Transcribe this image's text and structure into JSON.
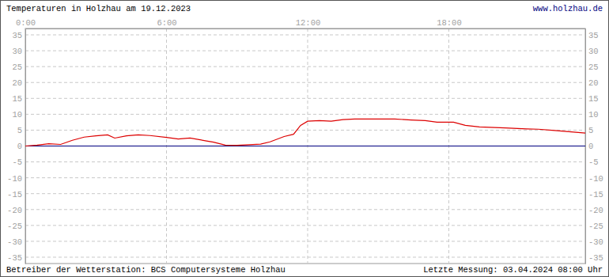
{
  "chart_data": {
    "type": "line",
    "title": "Temperaturen in Holzhau am 19.12.2023",
    "annotations": [
      "www.holzhau.de",
      "Betreiber der Wetterstation: BCS Computersysteme Holzhau",
      "Letzte Messung: 03.04.2024 08:00 Uhr"
    ],
    "x": [
      0,
      0.5,
      1,
      1.5,
      2,
      2.5,
      3,
      3.5,
      3.8,
      4.3,
      4.8,
      5.3,
      6,
      6.5,
      7,
      7.7,
      8,
      8.5,
      9,
      9.5,
      10,
      10.4,
      11,
      11.4,
      11.7,
      12,
      12.5,
      13,
      13.5,
      14,
      15,
      15.7,
      16.4,
      17,
      17.5,
      18.2,
      18.7,
      19.3,
      20.4,
      21.3,
      21.8,
      22.5,
      23.1,
      23.8
    ],
    "series": [
      {
        "color": "#dd0000",
        "values": [
          0,
          0.3,
          0.7,
          0.5,
          1.8,
          2.8,
          3.2,
          3.5,
          2.5,
          3.2,
          3.5,
          3.3,
          2.7,
          2.2,
          2.5,
          1.6,
          1.2,
          0.3,
          0.2,
          0.4,
          0.6,
          1.3,
          3.0,
          3.7,
          6.5,
          7.8,
          8,
          7.8,
          8.3,
          8.5,
          8.5,
          8.5,
          8.2,
          8,
          7.5,
          7.5,
          6.5,
          6,
          5.7,
          5.4,
          5.3,
          4.9,
          4.5,
          4.1
        ]
      },
      {
        "color": "#000080",
        "values": [
          0,
          0,
          0,
          0,
          0,
          0,
          0,
          0,
          0,
          0,
          0,
          0,
          0,
          0,
          0,
          0,
          0,
          0,
          0,
          0,
          0,
          0,
          0,
          0,
          0,
          0,
          0,
          0,
          0,
          0,
          0,
          0,
          0,
          0,
          0,
          0,
          0,
          0,
          0,
          0,
          0,
          0,
          0,
          0
        ]
      }
    ],
    "xlim": [
      0,
      23.8
    ],
    "xticks": [
      {
        "value": 0,
        "label": "0:00"
      },
      {
        "value": 6,
        "label": "6:00"
      },
      {
        "value": 12,
        "label": "12:00"
      },
      {
        "value": 18,
        "label": "18:00"
      }
    ],
    "ylim": [
      -37,
      37
    ],
    "yticks": [
      -35,
      -30,
      -25,
      -20,
      -15,
      -10,
      -5,
      0,
      5,
      10,
      15,
      20,
      25,
      30,
      35
    ],
    "grid": true
  }
}
